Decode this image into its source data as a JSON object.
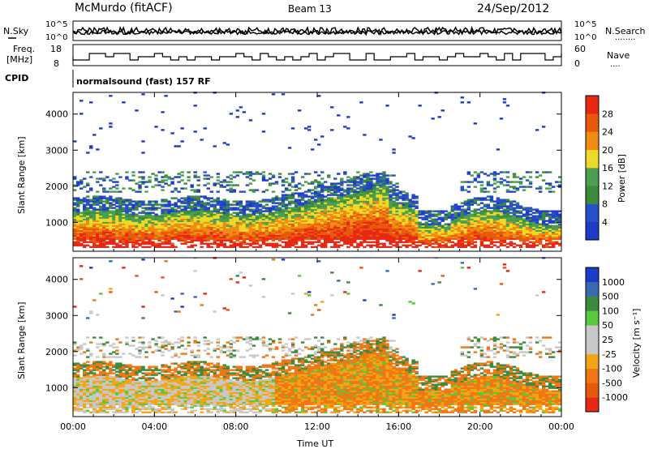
{
  "header": {
    "title": "McMurdo (fitACF)",
    "beam": "Beam 13",
    "date": "24/Sep/2012"
  },
  "top_panel": {
    "left_label": "N.Sky",
    "right_label": "N.Search",
    "tick_hi": "10^5",
    "tick_lo": "10^0",
    "legend_dots": "........"
  },
  "freq_panel": {
    "left_label_1": "Freq.",
    "left_label_2": "[MHz]",
    "left_ticks": [
      "18",
      "8"
    ],
    "right_label": "Nave",
    "right_ticks": [
      "60",
      "0"
    ],
    "legend_dots": "...."
  },
  "cpid": {
    "label": "CPID",
    "value": "normalsound (fast) 157 RF"
  },
  "colors": {
    "power_scale": [
      "#1e3cc8",
      "#2850c8",
      "#3c8a3c",
      "#4aa050",
      "#f0d828",
      "#f08c14",
      "#e85a0a",
      "#e62814"
    ],
    "velocity_scale": [
      "#1e3cc8",
      "#3a6ab4",
      "#3c8a3c",
      "#58c83c",
      "#c8c8c8",
      "#c8c8c8",
      "#f5a514",
      "#f07814",
      "#e65a0a",
      "#e62814"
    ]
  },
  "chart_data": [
    {
      "type": "heatmap",
      "title": "",
      "xlabel": "",
      "ylabel": "Slant Range [km]",
      "x_ticks": [
        "00:00",
        "04:00",
        "08:00",
        "12:00",
        "16:00",
        "20:00",
        "00:00"
      ],
      "y_ticks": [
        "1000",
        "2000",
        "3000",
        "4000"
      ],
      "ylim": [
        200,
        4600
      ],
      "colorbar_label": "Power [dB]",
      "colorbar_ticks": [
        "4",
        "8",
        "12",
        "16",
        "20",
        "24",
        "28"
      ]
    },
    {
      "type": "heatmap",
      "title": "",
      "xlabel": "Time UT",
      "ylabel": "Slant Range [km]",
      "x_ticks": [
        "00:00",
        "04:00",
        "08:00",
        "12:00",
        "16:00",
        "20:00",
        "00:00"
      ],
      "y_ticks": [
        "1000",
        "2000",
        "3000",
        "4000"
      ],
      "ylim": [
        200,
        4600
      ],
      "colorbar_label": "Velocity [m s⁻¹]",
      "colorbar_ticks": [
        "1000",
        "500",
        "100",
        "50",
        "25",
        "-25",
        "-100",
        "-500",
        "-1000"
      ]
    }
  ]
}
